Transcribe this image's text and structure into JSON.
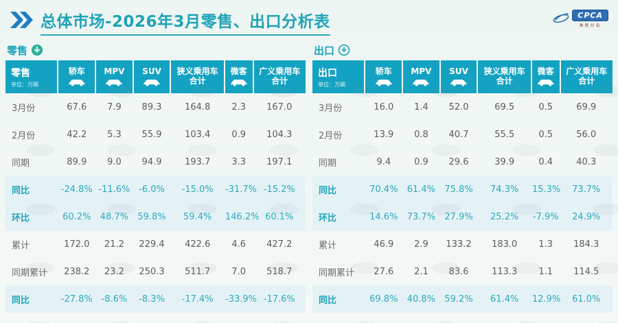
{
  "title": {
    "text": "总体市场-2026年3月零售、出口分析表"
  },
  "logo": {
    "text": "CPCA",
    "subtext": "乘联分会"
  },
  "colors": {
    "header_teal": "#14a2c2",
    "title_teal": "#1fa3b6",
    "chevron_blue": "#1d7ec2",
    "highlight_bg": "#e4f2f6",
    "highlight_text": "#2ea9bd",
    "body_text": "#5b5b5b",
    "logo_blue": "#2f6db5"
  },
  "chart_data": [
    {
      "type": "table",
      "title": "零售",
      "corner_label": "零售",
      "unit_note": "单位：万辆",
      "columns": [
        {
          "lines": [
            "轿车"
          ],
          "icon": "sedan-icon"
        },
        {
          "lines": [
            "MPV"
          ],
          "icon": "mpv-icon"
        },
        {
          "lines": [
            "SUV"
          ],
          "icon": "suv-icon"
        },
        {
          "lines": [
            "狭义乘用车",
            "合计"
          ],
          "icon": null
        },
        {
          "lines": [
            "微客"
          ],
          "icon": "van-icon"
        },
        {
          "lines": [
            "广义乘用车",
            "合计"
          ],
          "icon": null
        }
      ],
      "rows": [
        {
          "label": "3月份",
          "highlight": false,
          "values": [
            "67.6",
            "7.9",
            "89.3",
            "164.8",
            "2.3",
            "167.0"
          ]
        },
        {
          "label": "2月份",
          "highlight": false,
          "values": [
            "42.2",
            "5.3",
            "55.9",
            "103.4",
            "0.9",
            "104.3"
          ]
        },
        {
          "label": "同期",
          "highlight": false,
          "values": [
            "89.9",
            "9.0",
            "94.9",
            "193.7",
            "3.3",
            "197.1"
          ]
        },
        {
          "label": "同比",
          "highlight": true,
          "values": [
            "-24.8%",
            "-11.6%",
            "-6.0%",
            "-15.0%",
            "-31.7%",
            "-15.2%"
          ]
        },
        {
          "label": "环比",
          "highlight": true,
          "values": [
            "60.2%",
            "48.7%",
            "59.8%",
            "59.4%",
            "146.2%",
            "60.1%"
          ]
        },
        {
          "label": "累计",
          "highlight": false,
          "values": [
            "172.0",
            "21.2",
            "229.4",
            "422.6",
            "4.6",
            "427.2"
          ]
        },
        {
          "label": "同期累计",
          "highlight": false,
          "values": [
            "238.2",
            "23.2",
            "250.3",
            "511.7",
            "7.0",
            "518.7"
          ]
        },
        {
          "label": "同比",
          "highlight": true,
          "values": [
            "-27.8%",
            "-8.6%",
            "-8.3%",
            "-17.4%",
            "-33.9%",
            "-17.6%"
          ]
        }
      ]
    },
    {
      "type": "table",
      "title": "出口",
      "corner_label": "出口",
      "unit_note": "单位：万辆",
      "columns": [
        {
          "lines": [
            "轿车"
          ],
          "icon": "sedan-icon"
        },
        {
          "lines": [
            "MPV"
          ],
          "icon": "mpv-icon"
        },
        {
          "lines": [
            "SUV"
          ],
          "icon": "suv-icon"
        },
        {
          "lines": [
            "狭义乘用车",
            "合计"
          ],
          "icon": null
        },
        {
          "lines": [
            "微客"
          ],
          "icon": "van-icon"
        },
        {
          "lines": [
            "广义乘用车",
            "合计"
          ],
          "icon": null
        }
      ],
      "rows": [
        {
          "label": "3月份",
          "highlight": false,
          "values": [
            "16.0",
            "1.4",
            "52.0",
            "69.5",
            "0.5",
            "69.9"
          ]
        },
        {
          "label": "2月份",
          "highlight": false,
          "values": [
            "13.9",
            "0.8",
            "40.7",
            "55.5",
            "0.5",
            "56.0"
          ]
        },
        {
          "label": "同期",
          "highlight": false,
          "values": [
            "9.4",
            "0.9",
            "29.6",
            "39.9",
            "0.4",
            "40.3"
          ]
        },
        {
          "label": "同比",
          "highlight": true,
          "values": [
            "70.4%",
            "61.4%",
            "75.8%",
            "74.3%",
            "15.3%",
            "73.7%"
          ]
        },
        {
          "label": "环比",
          "highlight": true,
          "values": [
            "14.6%",
            "73.7%",
            "27.9%",
            "25.2%",
            "-7.9%",
            "24.9%"
          ]
        },
        {
          "label": "累计",
          "highlight": false,
          "values": [
            "46.9",
            "2.9",
            "133.2",
            "183.0",
            "1.3",
            "184.3"
          ]
        },
        {
          "label": "同期累计",
          "highlight": false,
          "values": [
            "27.6",
            "2.1",
            "83.6",
            "113.3",
            "1.1",
            "114.5"
          ]
        },
        {
          "label": "同比",
          "highlight": true,
          "values": [
            "69.8%",
            "40.8%",
            "59.2%",
            "61.4%",
            "12.9%",
            "61.0%"
          ]
        }
      ]
    }
  ]
}
